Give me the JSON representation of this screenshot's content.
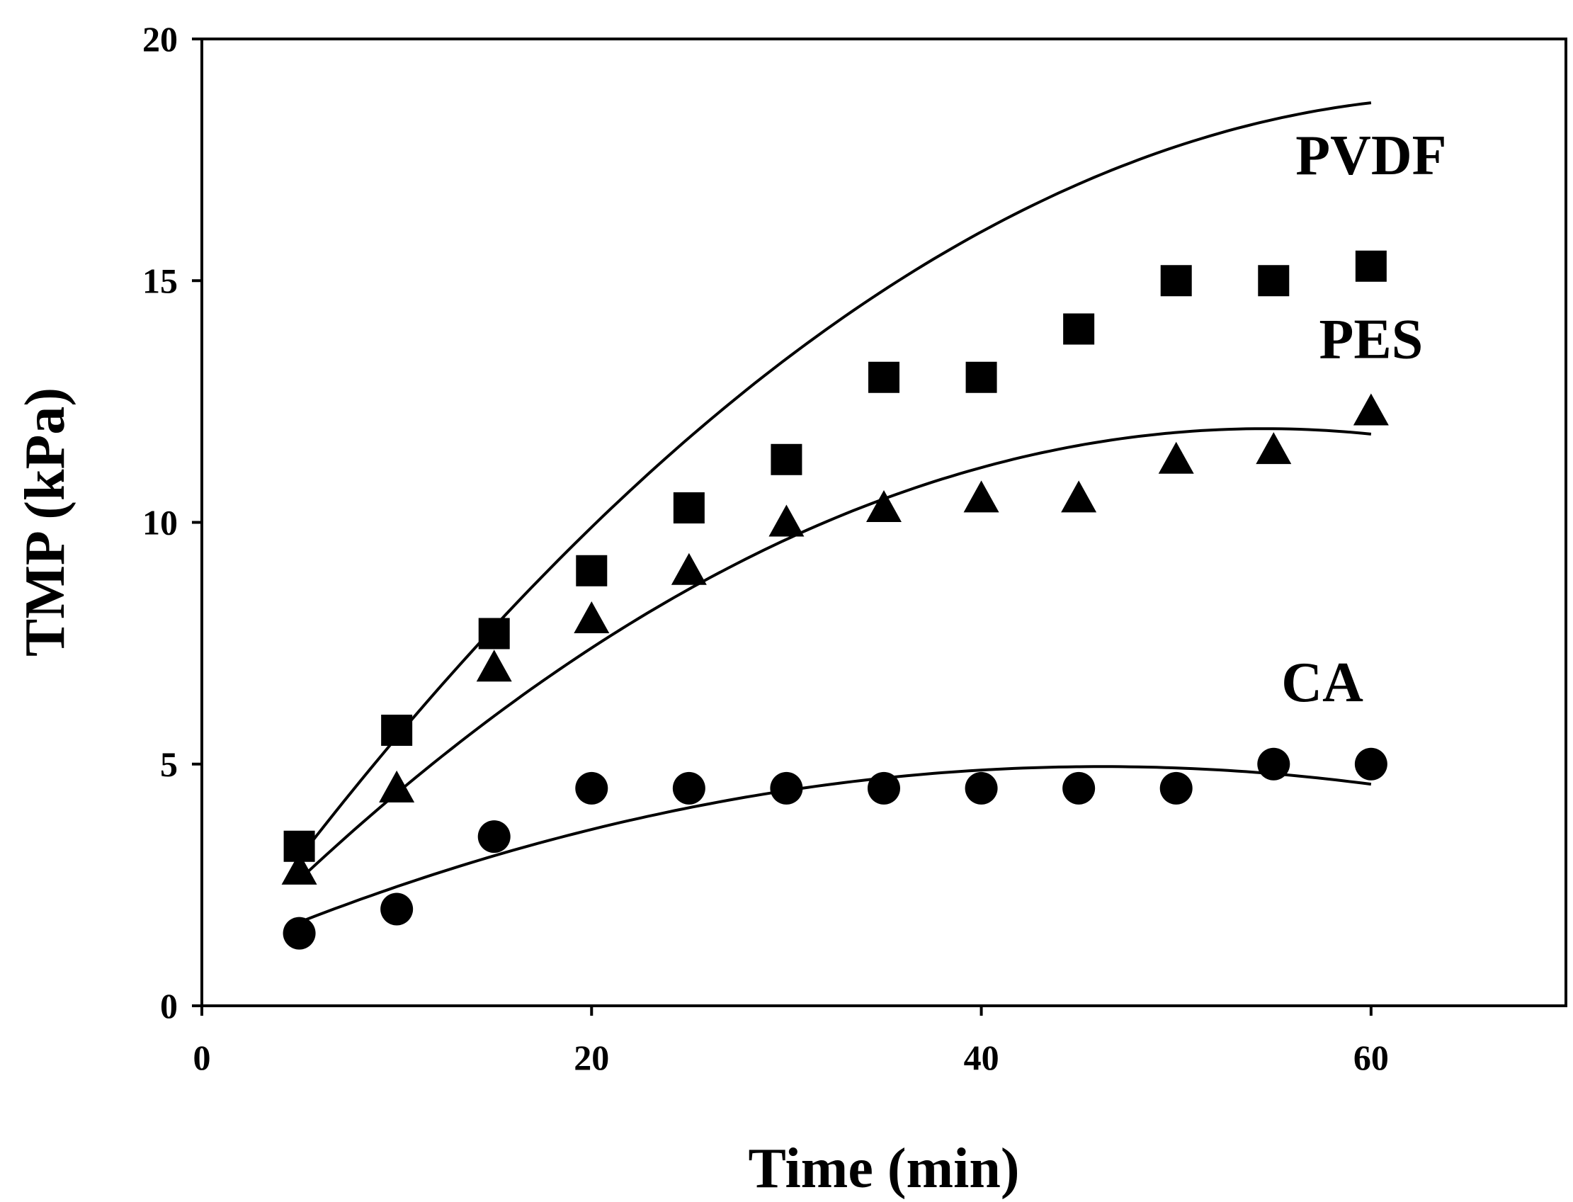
{
  "chart_data": {
    "type": "scatter",
    "title": "",
    "xlabel": "Time (min)",
    "ylabel": "TMP (kPa)",
    "xlim": [
      0,
      70
    ],
    "ylim": [
      0,
      20
    ],
    "xticks": [
      0,
      20,
      40,
      60
    ],
    "yticks": [
      0,
      5,
      10,
      15,
      20
    ],
    "grid": false,
    "legend": "none",
    "series": [
      {
        "name": "PVDF",
        "marker": "square",
        "x": [
          5,
          10,
          15,
          20,
          25,
          30,
          35,
          40,
          45,
          50,
          55,
          60
        ],
        "y": [
          3.3,
          5.7,
          7.7,
          9.0,
          10.3,
          11.3,
          13.0,
          13.0,
          14.0,
          15.0,
          15.0,
          15.3
        ],
        "fit": [
          0.35,
          0.5635,
          -0.0043
        ],
        "label_anchor": [
          60,
          17.2
        ]
      },
      {
        "name": "PES",
        "marker": "triangle",
        "x": [
          5,
          10,
          15,
          20,
          25,
          30,
          35,
          40,
          45,
          50,
          55,
          60
        ],
        "y": [
          2.8,
          4.5,
          7.0,
          8.0,
          9.0,
          10.0,
          10.3,
          10.5,
          10.5,
          11.3,
          11.5,
          12.3
        ],
        "fit": [
          0.63,
          0.4146,
          -0.0038
        ],
        "label_anchor": [
          60,
          13.4
        ]
      },
      {
        "name": "CA",
        "marker": "circle",
        "x": [
          5,
          10,
          15,
          20,
          25,
          30,
          35,
          40,
          45,
          50,
          55,
          60
        ],
        "y": [
          1.5,
          2.0,
          3.5,
          4.5,
          4.5,
          4.5,
          4.5,
          4.5,
          4.5,
          4.5,
          5.0,
          5.0
        ],
        "fit": [
          0.9,
          0.1754,
          -0.0019
        ],
        "label_anchor": [
          57.5,
          6.3
        ]
      }
    ]
  }
}
